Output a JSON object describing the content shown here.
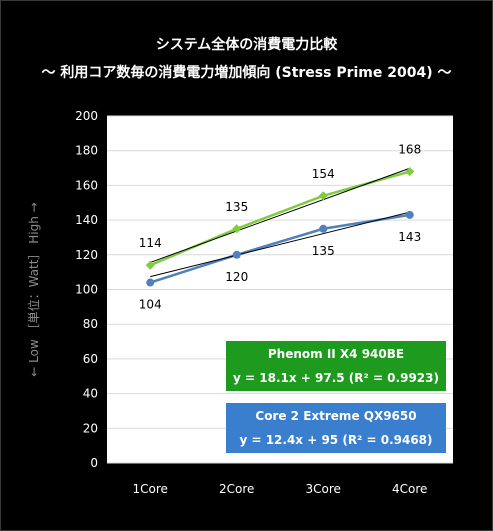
{
  "title": "システム全体の消費電力比較",
  "subtitle": "～ 利用コア数毎の消費電力増加傾向 (Stress Prime 2004) ～",
  "colors": {
    "background": "#000000",
    "plot_bg": "#ffffff",
    "phenom": "#7fcc3f",
    "core2": "#4f81bd",
    "trend": "#000000"
  },
  "chart_data": {
    "type": "line",
    "categories": [
      "1Core",
      "2Core",
      "3Core",
      "4Core"
    ],
    "ylabel": "← Low ［単位：Watt］ High →",
    "ylim": [
      0,
      200
    ],
    "yticks": [
      "0",
      "20",
      "40",
      "60",
      "80",
      "100",
      "120",
      "140",
      "160",
      "180",
      "200"
    ],
    "grid": "horizontal",
    "series": [
      {
        "name": "Phenom II X4 940BE",
        "values": [
          114,
          135,
          154,
          168
        ],
        "labels": [
          "114",
          "135",
          "154",
          "168"
        ],
        "trend": [
          115.6,
          133.7,
          151.8,
          169.9
        ],
        "equation": "y = 18.1x + 97.5  (R² = 0.9923)"
      },
      {
        "name": "Core 2 Extreme QX9650",
        "values": [
          104,
          120,
          135,
          143
        ],
        "labels": [
          "104",
          "120",
          "135",
          "143"
        ],
        "trend": [
          107.4,
          119.8,
          132.2,
          144.6
        ],
        "equation": "y = 12.4x + 95     (R² = 0.9468)"
      }
    ]
  }
}
